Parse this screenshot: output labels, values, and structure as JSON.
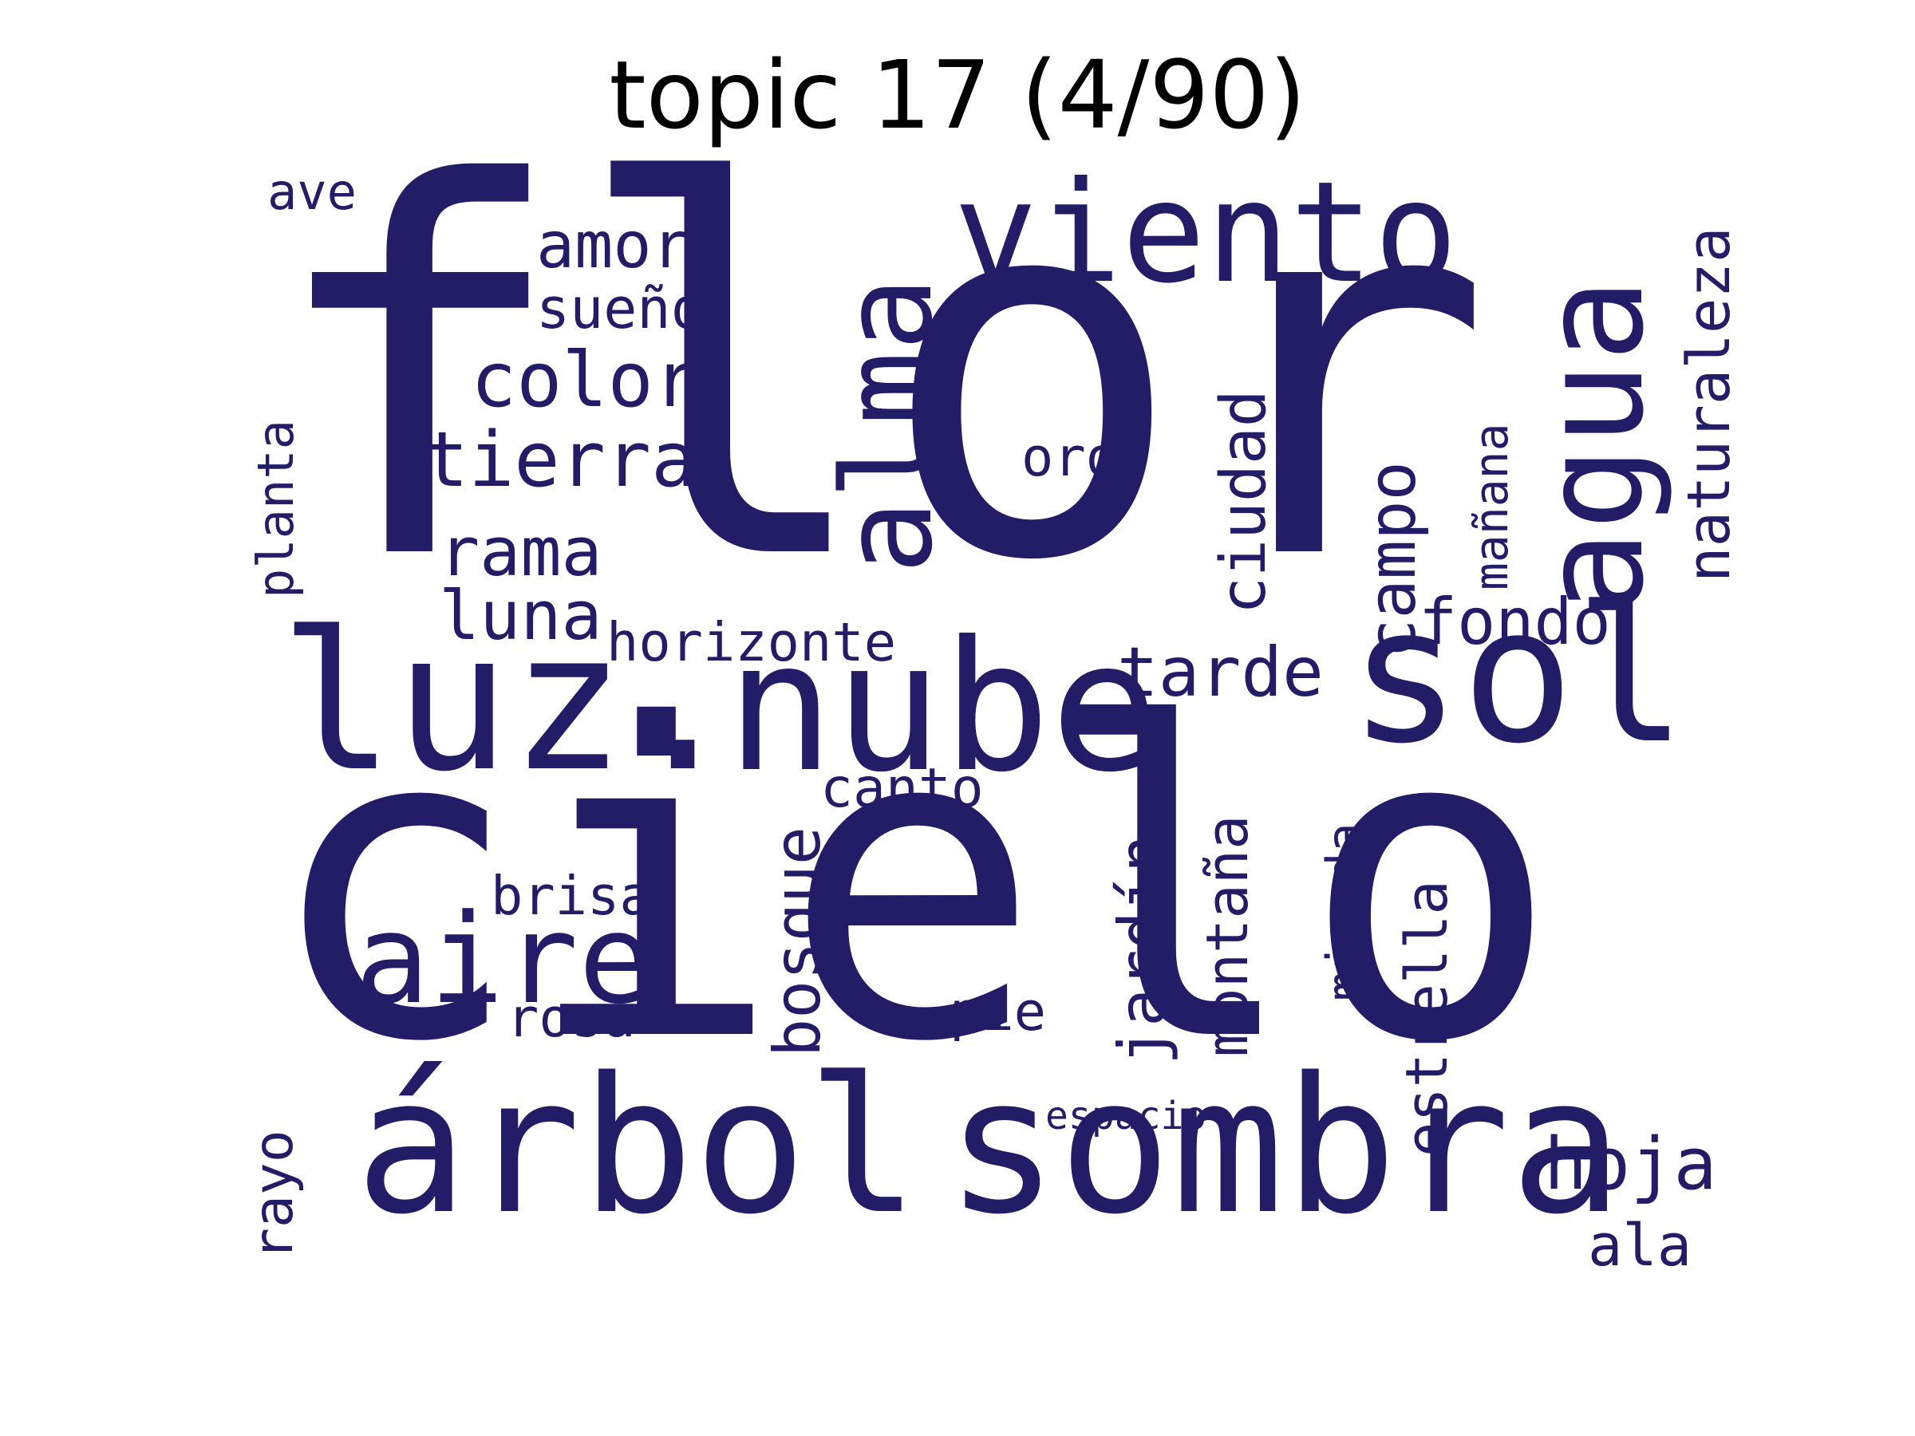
{
  "title": "topic 17 (4/90)",
  "word_color": "#231d68",
  "words": [
    {
      "text": "flor"
    },
    {
      "text": "cielo"
    },
    {
      "text": "sol"
    },
    {
      "text": "luz."
    },
    {
      "text": "nube"
    },
    {
      "text": "árbol"
    },
    {
      "text": "sombra"
    },
    {
      "text": "viento"
    },
    {
      "text": "agua"
    },
    {
      "text": "alma"
    },
    {
      "text": "aire"
    },
    {
      "text": "tierra"
    },
    {
      "text": "color"
    },
    {
      "text": "amor"
    },
    {
      "text": "sueño"
    },
    {
      "text": "rama"
    },
    {
      "text": "luna"
    },
    {
      "text": "horizonte"
    },
    {
      "text": "tarde"
    },
    {
      "text": "fondo"
    },
    {
      "text": "oro"
    },
    {
      "text": "naturaleza"
    },
    {
      "text": "campo"
    },
    {
      "text": "ciudad"
    },
    {
      "text": "mañana"
    },
    {
      "text": "planta"
    },
    {
      "text": "ave"
    },
    {
      "text": "canto"
    },
    {
      "text": "bosque"
    },
    {
      "text": "jardín"
    },
    {
      "text": "montaña"
    },
    {
      "text": "estrella"
    },
    {
      "text": "mirada"
    },
    {
      "text": "pie"
    },
    {
      "text": "brisa"
    },
    {
      "text": "rosa"
    },
    {
      "text": "espacio"
    },
    {
      "text": "rayo"
    },
    {
      "text": "hoja"
    },
    {
      "text": "ala"
    }
  ]
}
